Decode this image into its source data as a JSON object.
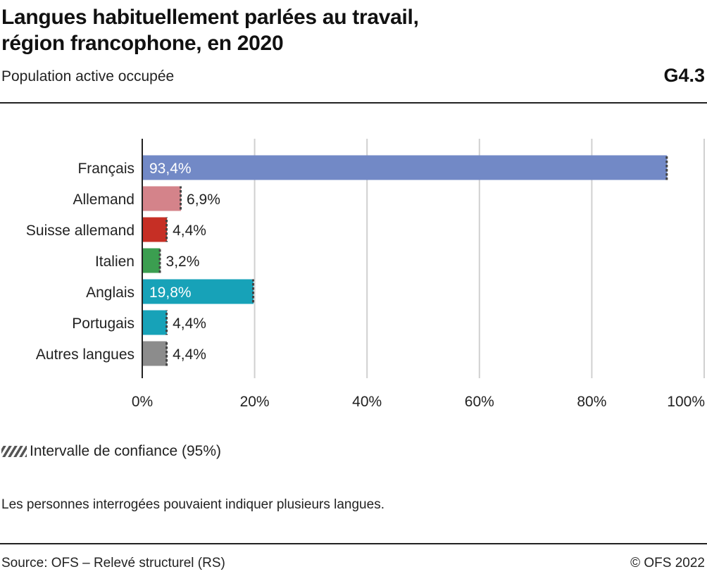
{
  "header": {
    "title_line1": "Langues habituellement parlées au travail,",
    "title_line2": "région francophone, en 2020",
    "subtitle": "Population active occupée",
    "figure_id": "G4.3"
  },
  "legend": {
    "label": "Intervalle de confiance (95%)",
    "icon": "hatched-confidence-interval-icon"
  },
  "note": "Les personnes interrogées pouvaient indiquer plusieurs langues.",
  "footer": {
    "source": "Source: OFS – Relevé structurel (RS)",
    "copyright": "© OFS 2022"
  },
  "chart_data": {
    "type": "bar",
    "orientation": "horizontal",
    "title": "Langues habituellement parlées au travail, région francophone, en 2020",
    "subtitle": "Population active occupée",
    "xlabel": "",
    "ylabel": "",
    "xlim": [
      0,
      100
    ],
    "x_ticks": [
      0,
      20,
      40,
      60,
      80,
      100
    ],
    "x_tick_labels": [
      "0%",
      "20%",
      "40%",
      "60%",
      "80%",
      "100%"
    ],
    "grid": true,
    "legend_position": "bottom-left",
    "categories": [
      "Français",
      "Allemand",
      "Suisse allemand",
      "Italien",
      "Anglais",
      "Portugais",
      "Autres langues"
    ],
    "values": [
      93.4,
      6.9,
      4.4,
      3.2,
      19.8,
      4.4,
      4.4
    ],
    "value_labels": [
      "93,4%",
      "6,9%",
      "4,4%",
      "3,2%",
      "19,8%",
      "4,4%",
      "4,4%"
    ],
    "colors": [
      "#7289c6",
      "#d4838a",
      "#c62f25",
      "#3b9e50",
      "#17a2b8",
      "#17a2b8",
      "#8c8c8c"
    ],
    "label_inside": [
      true,
      false,
      false,
      false,
      true,
      false,
      false
    ],
    "confidence_interval_shown": true
  }
}
